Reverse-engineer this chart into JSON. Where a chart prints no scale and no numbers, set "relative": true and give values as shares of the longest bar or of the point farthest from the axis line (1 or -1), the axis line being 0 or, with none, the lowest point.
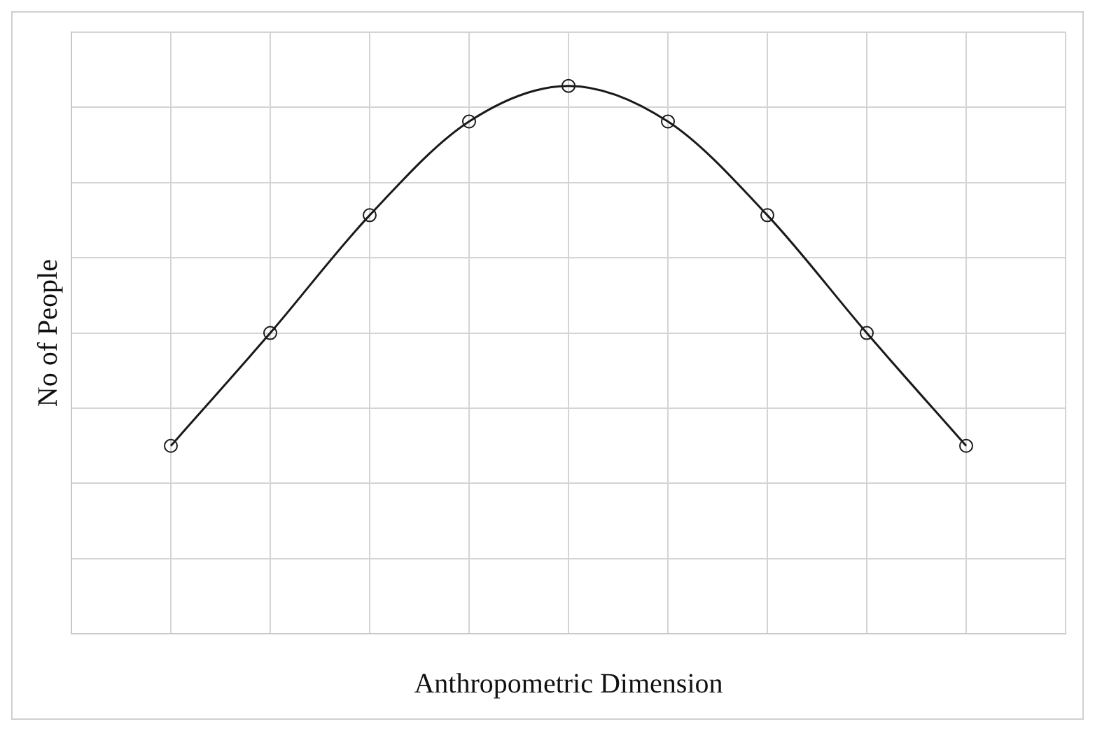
{
  "chart_data": {
    "type": "line",
    "relative": true,
    "categories": [
      null,
      null,
      null,
      null,
      null,
      null,
      null,
      null,
      null
    ],
    "series": [
      {
        "color": "#1a1a1a",
        "values": [
          0.343,
          0.549,
          0.764,
          0.935,
          1,
          0.935,
          0.764,
          0.549,
          0.343
        ]
      }
    ],
    "xlabel": "Anthropometric Dimension",
    "ylabel": "No of People",
    "grid": true,
    "marker": "circle",
    "line_style": "solid",
    "legend": false
  }
}
